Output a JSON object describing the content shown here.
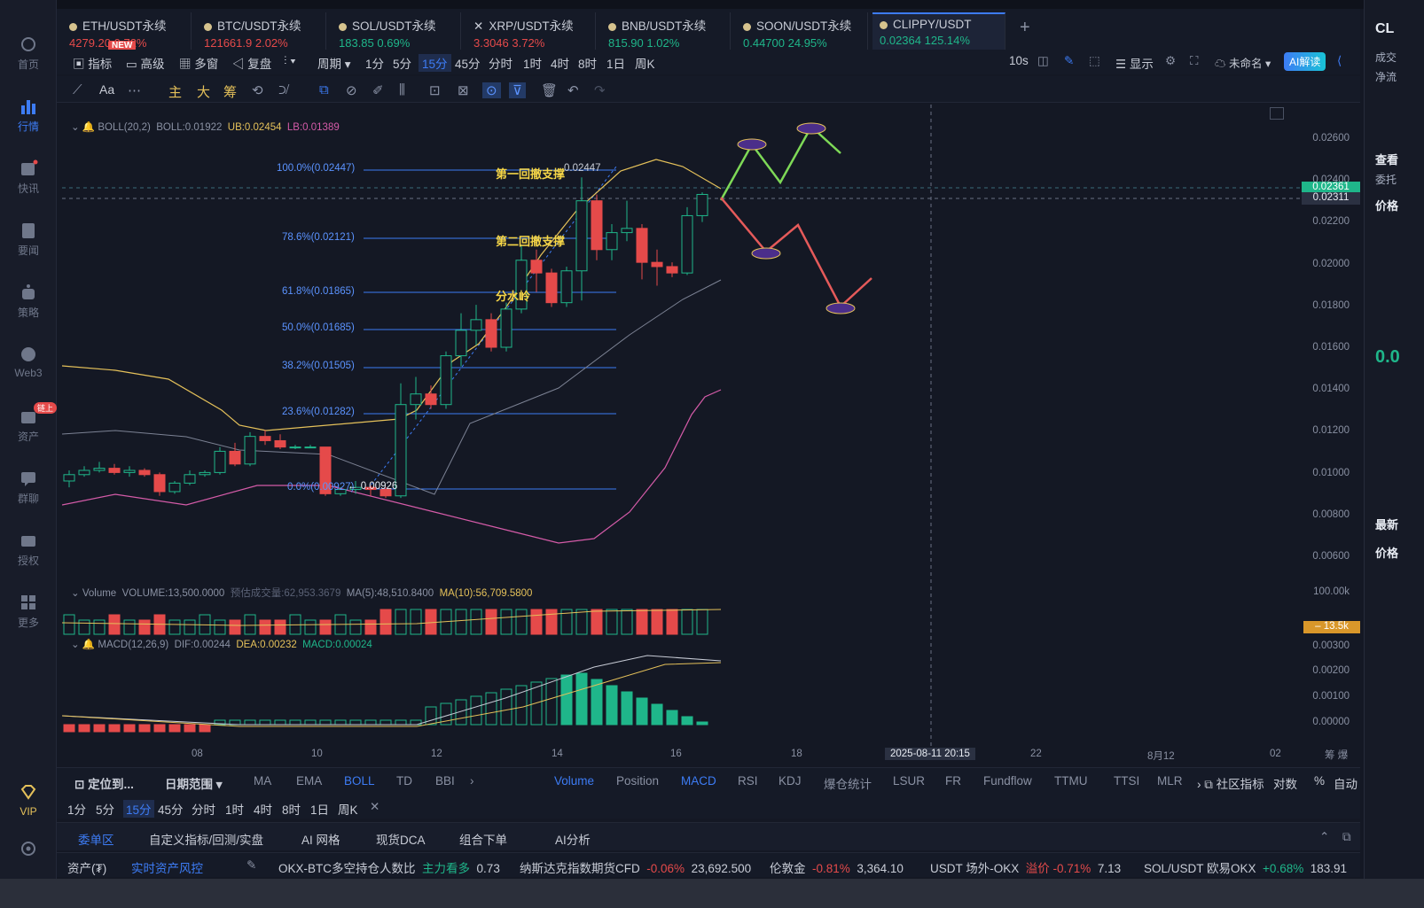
{
  "sidebar": {
    "items": [
      {
        "label": "首页",
        "icon": "home-icon"
      },
      {
        "label": "行情",
        "icon": "chart-bar-icon",
        "active": true
      },
      {
        "label": "快讯",
        "icon": "flash-news-icon"
      },
      {
        "label": "要闻",
        "icon": "news-icon"
      },
      {
        "label": "策略",
        "icon": "robot-icon"
      },
      {
        "label": "Web3",
        "icon": "web3-icon"
      },
      {
        "label": "资产",
        "icon": "wallet-icon",
        "badge": "链上"
      },
      {
        "label": "群聊",
        "icon": "chat-icon"
      },
      {
        "label": "授权",
        "icon": "key-icon"
      },
      {
        "label": "更多",
        "icon": "grid-icon"
      },
      {
        "label": "VIP",
        "icon": "vip-diamond-icon"
      }
    ]
  },
  "tabs": [
    {
      "name": "ETH/USDT永续",
      "price": "4279.20",
      "change": "0.72%",
      "dir": "dn",
      "new": "NEW"
    },
    {
      "name": "BTC/USDT永续",
      "price": "121661.9",
      "change": "2.02%",
      "dir": "dn"
    },
    {
      "name": "SOL/USDT永续",
      "price": "183.85",
      "change": "0.69%",
      "dir": "up"
    },
    {
      "name": "XRP/USDT永续",
      "price": "3.3046",
      "change": "3.72%",
      "dir": "dn"
    },
    {
      "name": "BNB/USDT永续",
      "price": "815.90",
      "change": "1.02%",
      "dir": "up"
    },
    {
      "name": "SOON/USDT永续",
      "price": "0.44700",
      "change": "24.95%",
      "dir": "up"
    },
    {
      "name": "CLIPPY/USDT",
      "price": "0.02364",
      "change": "125.14%",
      "dir": "up",
      "active": true
    }
  ],
  "toolbar": {
    "indicator": "指标",
    "advanced": "高级",
    "multiwindow": "多窗",
    "replay": "复盘",
    "period": "周期",
    "intervals": [
      "1分",
      "5分",
      "15分",
      "45分",
      "分时",
      "1时",
      "4时",
      "8时",
      "1日",
      "周K"
    ],
    "selected_interval": "15分",
    "refresh": "10s",
    "display": "显示",
    "layout_name": "未命名",
    "ai": "AI解读"
  },
  "drawing_tools": {
    "text": "Aa",
    "main": "主",
    "big": "大",
    "chips": "筹"
  },
  "chart": {
    "boll_legend": {
      "name": "BOLL(20,2)",
      "boll": "BOLL:0.01922",
      "ub": "UB:0.02454",
      "lb": "LB:0.01389"
    },
    "y_ticks": [
      "0.02600",
      "0.02400",
      "0.02200",
      "0.02000",
      "0.01800",
      "0.01600",
      "0.01400",
      "0.01200",
      "0.01000",
      "0.00800",
      "0.00600"
    ],
    "price_last": "0.02361",
    "price_cross": "0.02311",
    "fib": [
      {
        "label": "100.0%(0.02447)"
      },
      {
        "label": "78.6%(0.02121)"
      },
      {
        "label": "61.8%(0.01865)"
      },
      {
        "label": "50.0%(0.01685)"
      },
      {
        "label": "38.2%(0.01505)"
      },
      {
        "label": "23.6%(0.01282)"
      },
      {
        "label": "0.0%(0.00927)"
      }
    ],
    "high_mark": "0.02447",
    "low_mark": "0.00926",
    "notes": {
      "first": "第一回撤支撑",
      "second": "第二回撤支撑",
      "watershed": "分水岭"
    },
    "volume_legend": {
      "name": "Volume",
      "vol": "VOLUME:13,500.0000",
      "est": "预估成交量:62,953.3679",
      "ma5": "MA(5):48,510.8400",
      "ma10": "MA(10):56,709.5800"
    },
    "volume_ticks": {
      "top": "100.00k",
      "current": "13.5k"
    },
    "macd_legend": {
      "name": "MACD(12,26,9)",
      "dif": "DIF:0.00244",
      "dea": "DEA:0.00232",
      "macd": "MACD:0.00024"
    },
    "macd_ticks": [
      "0.00300",
      "0.00200",
      "0.00100",
      "0.00000"
    ],
    "x_ticks": [
      "08",
      "10",
      "12",
      "14",
      "16",
      "18",
      "22",
      "8月12",
      "02"
    ],
    "crosshair_time": "2025-08-11 20:15",
    "corner_icons": "筹 爆"
  },
  "chart_data": {
    "type": "candlestick",
    "candles": [
      [
        0.0101,
        0.0104,
        0.0098,
        0.0106
      ],
      [
        0.0104,
        0.0106,
        0.0103,
        0.0108
      ],
      [
        0.0106,
        0.0107,
        0.0105,
        0.011
      ],
      [
        0.0107,
        0.0105,
        0.0104,
        0.0109
      ],
      [
        0.0105,
        0.0106,
        0.0103,
        0.0108
      ],
      [
        0.0106,
        0.0104,
        0.0103,
        0.0107
      ],
      [
        0.0104,
        0.0096,
        0.0094,
        0.0105
      ],
      [
        0.0096,
        0.01,
        0.0095,
        0.0101
      ],
      [
        0.01,
        0.0104,
        0.0099,
        0.0106
      ],
      [
        0.0104,
        0.0105,
        0.0103,
        0.0106
      ],
      [
        0.0105,
        0.0115,
        0.0104,
        0.0117
      ],
      [
        0.0115,
        0.0109,
        0.0108,
        0.0119
      ],
      [
        0.0109,
        0.0122,
        0.0108,
        0.0124
      ],
      [
        0.0122,
        0.012,
        0.0118,
        0.0125
      ],
      [
        0.012,
        0.0117,
        0.0116,
        0.0123
      ],
      [
        0.0117,
        0.0117,
        0.0116,
        0.0118
      ],
      [
        0.0117,
        0.0117,
        0.0117,
        0.0118
      ],
      [
        0.0117,
        0.0095,
        0.0094,
        0.0117
      ],
      [
        0.0095,
        0.0097,
        0.0094,
        0.0098
      ],
      [
        0.0097,
        0.0098,
        0.0095,
        0.0101
      ],
      [
        0.0098,
        0.0097,
        0.0094,
        0.0099
      ],
      [
        0.0097,
        0.0094,
        0.0093,
        0.0098
      ],
      [
        0.0094,
        0.0137,
        0.0093,
        0.0147
      ],
      [
        0.0137,
        0.0142,
        0.013,
        0.015
      ],
      [
        0.0142,
        0.0137,
        0.0135,
        0.0146
      ],
      [
        0.0137,
        0.016,
        0.0135,
        0.0162
      ],
      [
        0.016,
        0.0172,
        0.0155,
        0.018
      ],
      [
        0.0172,
        0.0177,
        0.0165,
        0.0184
      ],
      [
        0.0177,
        0.0164,
        0.0162,
        0.018
      ],
      [
        0.0164,
        0.0182,
        0.0162,
        0.0185
      ],
      [
        0.0182,
        0.0205,
        0.018,
        0.0212
      ],
      [
        0.0205,
        0.0199,
        0.019,
        0.021
      ],
      [
        0.0199,
        0.0185,
        0.0183,
        0.0201
      ],
      [
        0.0185,
        0.02,
        0.0183,
        0.0202
      ],
      [
        0.02,
        0.0233,
        0.0186,
        0.0244
      ],
      [
        0.0233,
        0.021,
        0.0205,
        0.0236
      ],
      [
        0.021,
        0.0218,
        0.0205,
        0.0222
      ],
      [
        0.0218,
        0.022,
        0.0214,
        0.0233
      ],
      [
        0.022,
        0.0204,
        0.0196,
        0.0222
      ],
      [
        0.0204,
        0.0202,
        0.0193,
        0.021
      ],
      [
        0.0202,
        0.0199,
        0.0197,
        0.0204
      ],
      [
        0.0199,
        0.0226,
        0.0198,
        0.023
      ],
      [
        0.0226,
        0.0236,
        0.0223,
        0.0237
      ]
    ],
    "ylim": [
      0.0053,
      0.027
    ]
  },
  "bottom_bar": {
    "locate": "定位到...",
    "date_range": "日期范围",
    "main_indicators": [
      "MA",
      "EMA",
      "BOLL",
      "TD",
      "BBI"
    ],
    "sub_indicators": [
      "Volume",
      "Position",
      "MACD",
      "RSI",
      "KDJ",
      "爆仓统计",
      "LSUR",
      "FR",
      "Fundflow",
      "TTMU",
      "TTSI",
      "MLR"
    ],
    "community": "社区指标",
    "log": "对数",
    "pct": "%",
    "auto": "自动",
    "intervals": [
      "1分",
      "5分",
      "15分",
      "45分",
      "分时",
      "1时",
      "4时",
      "8时",
      "1日",
      "周K"
    ]
  },
  "panel_tabs": [
    "委单区",
    "自定义指标/回测/实盘",
    "AI 网格",
    "现货DCA",
    "组合下单",
    "AI分析"
  ],
  "ticker": [
    {
      "label": "资产(₮)",
      "value": "",
      "change": ""
    },
    {
      "label": "实时资产风控",
      "value": "",
      "change": ""
    },
    {
      "label": "OKX-BTC多空持仓人数比",
      "value": "0.73",
      "change": "主力看多"
    },
    {
      "label": "纳斯达克指数期货CFD",
      "value": "23,692.500",
      "change": "-0.06%"
    },
    {
      "label": "伦敦金",
      "value": "3,364.10",
      "change": "-0.81%"
    },
    {
      "label": "USDT 场外-OKX",
      "value": "7.13",
      "change": "溢价 -0.71%"
    },
    {
      "label": "SOL/USDT 欧易OKX",
      "value": "183.91",
      "change": "+0.68%"
    }
  ],
  "right_panel": {
    "title": "CL",
    "items": [
      "成交",
      "净流",
      "查看",
      "委托",
      "价格",
      "最新",
      "价格"
    ],
    "price": "0.0"
  }
}
